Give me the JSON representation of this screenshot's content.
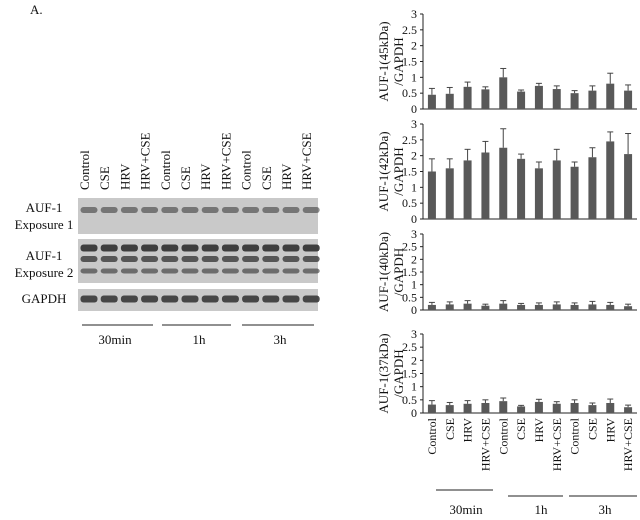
{
  "panel_label": "A.",
  "lane_labels": [
    "Control",
    "CSE",
    "HRV",
    "HRV+CSE",
    "Control",
    "CSE",
    "HRV",
    "HRV+CSE",
    "Control",
    "CSE",
    "HRV",
    "HRV+CSE"
  ],
  "blot_rows": [
    {
      "line1": "AUF-1",
      "line2": "Exposure 1"
    },
    {
      "line1": "AUF-1",
      "line2": "Exposure 2"
    },
    {
      "line1": "GAPDH",
      "line2": ""
    }
  ],
  "time_groups": [
    "30min",
    "1h",
    "3h"
  ],
  "colors": {
    "bar": "#595959",
    "axis": "#222222",
    "blot_bg": "#c9c9c9",
    "band": "#2f2f2f"
  },
  "chart_data": [
    {
      "type": "bar",
      "ylabel_line1": "AUF-1(45kDa)",
      "ylabel_line2": "/GAPDH",
      "ylim": [
        0,
        3
      ],
      "yticks": [
        "0",
        "0.5",
        "1",
        "1.5",
        "2",
        "2.5",
        "3"
      ],
      "categories": [
        "Control",
        "CSE",
        "HRV",
        "HRV+CSE",
        "Control",
        "CSE",
        "HRV",
        "HRV+CSE",
        "Control",
        "CSE",
        "HRV",
        "HRV+CSE"
      ],
      "values": [
        0.45,
        0.48,
        0.7,
        0.62,
        1.0,
        0.55,
        0.73,
        0.63,
        0.5,
        0.58,
        0.8,
        0.58
      ],
      "errors": [
        0.2,
        0.2,
        0.15,
        0.08,
        0.28,
        0.05,
        0.08,
        0.1,
        0.08,
        0.15,
        0.33,
        0.18
      ]
    },
    {
      "type": "bar",
      "ylabel_line1": "AUF-1(42kDa)",
      "ylabel_line2": "/GAPDH",
      "ylim": [
        0,
        3
      ],
      "yticks": [
        "0",
        "0.5",
        "1",
        "1.5",
        "2",
        "2.5",
        "3"
      ],
      "categories": [
        "Control",
        "CSE",
        "HRV",
        "HRV+CSE",
        "Control",
        "CSE",
        "HRV",
        "HRV+CSE",
        "Control",
        "CSE",
        "HRV",
        "HRV+CSE"
      ],
      "values": [
        1.5,
        1.6,
        1.85,
        2.1,
        2.25,
        1.9,
        1.6,
        1.85,
        1.65,
        1.95,
        2.45,
        2.05
      ],
      "errors": [
        0.4,
        0.3,
        0.35,
        0.35,
        0.6,
        0.15,
        0.2,
        0.35,
        0.15,
        0.3,
        0.3,
        0.65
      ]
    },
    {
      "type": "bar",
      "ylabel_line1": "AUF-1(40kDa)",
      "ylabel_line2": "/GAPDH",
      "ylim": [
        0,
        3
      ],
      "yticks": [
        "0",
        "0.5",
        "1",
        "1.5",
        "2",
        "2.5",
        "3"
      ],
      "categories": [
        "Control",
        "CSE",
        "HRV",
        "HRV+CSE",
        "Control",
        "CSE",
        "HRV",
        "HRV+CSE",
        "Control",
        "CSE",
        "HRV",
        "HRV+CSE"
      ],
      "values": [
        0.2,
        0.22,
        0.25,
        0.17,
        0.25,
        0.2,
        0.2,
        0.22,
        0.2,
        0.22,
        0.2,
        0.15
      ],
      "errors": [
        0.1,
        0.1,
        0.12,
        0.06,
        0.12,
        0.06,
        0.08,
        0.1,
        0.08,
        0.12,
        0.1,
        0.08
      ]
    },
    {
      "type": "bar",
      "ylabel_line1": "AUF-1(37kDa)",
      "ylabel_line2": "/GAPDH",
      "ylim": [
        0,
        3
      ],
      "yticks": [
        "0",
        "0.5",
        "1",
        "1.5",
        "2",
        "2.5",
        "3"
      ],
      "categories": [
        "Control",
        "CSE",
        "HRV",
        "HRV+CSE",
        "Control",
        "CSE",
        "HRV",
        "HRV+CSE",
        "Control",
        "CSE",
        "HRV",
        "HRV+CSE"
      ],
      "values": [
        0.32,
        0.3,
        0.35,
        0.38,
        0.45,
        0.25,
        0.42,
        0.35,
        0.38,
        0.3,
        0.38,
        0.22
      ],
      "errors": [
        0.15,
        0.1,
        0.12,
        0.12,
        0.12,
        0.04,
        0.1,
        0.08,
        0.12,
        0.08,
        0.15,
        0.08
      ]
    }
  ]
}
